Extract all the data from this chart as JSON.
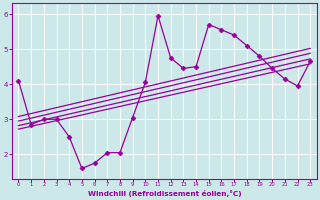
{
  "x": [
    0,
    1,
    2,
    3,
    4,
    5,
    6,
    7,
    8,
    9,
    10,
    11,
    12,
    13,
    14,
    15,
    16,
    17,
    18,
    19,
    20,
    21,
    22,
    23
  ],
  "y_data": [
    4.1,
    2.85,
    3.0,
    3.0,
    2.5,
    1.6,
    1.75,
    2.05,
    2.05,
    3.05,
    4.05,
    5.95,
    4.75,
    4.45,
    4.5,
    5.7,
    5.55,
    5.4,
    5.1,
    4.8,
    4.45,
    4.15,
    3.95,
    4.65
  ],
  "trend_lines": [
    {
      "x0": 0,
      "y0": 2.72,
      "x1": 23,
      "y1": 4.58
    },
    {
      "x0": 0,
      "y0": 2.82,
      "x1": 23,
      "y1": 4.72
    },
    {
      "x0": 0,
      "y0": 2.95,
      "x1": 23,
      "y1": 4.88
    },
    {
      "x0": 0,
      "y0": 3.08,
      "x1": 23,
      "y1": 5.02
    }
  ],
  "line_color": "#990099",
  "bg_color": "#cce8e8",
  "grid_color": "#b0d8d8",
  "xlabel": "Windchill (Refroidissement éolien,°C)",
  "xlabel_color": "#990099",
  "tick_color": "#990099",
  "spine_color": "#990099",
  "xlim": [
    -0.5,
    23.5
  ],
  "ylim": [
    1.3,
    6.3
  ],
  "yticks": [
    2,
    3,
    4,
    5,
    6
  ],
  "xticks": [
    0,
    1,
    2,
    3,
    4,
    5,
    6,
    7,
    8,
    9,
    10,
    11,
    12,
    13,
    14,
    15,
    16,
    17,
    18,
    19,
    20,
    21,
    22,
    23
  ],
  "marker": "D",
  "markersize": 2.5,
  "linewidth": 0.9,
  "trend_linewidth": 0.9
}
